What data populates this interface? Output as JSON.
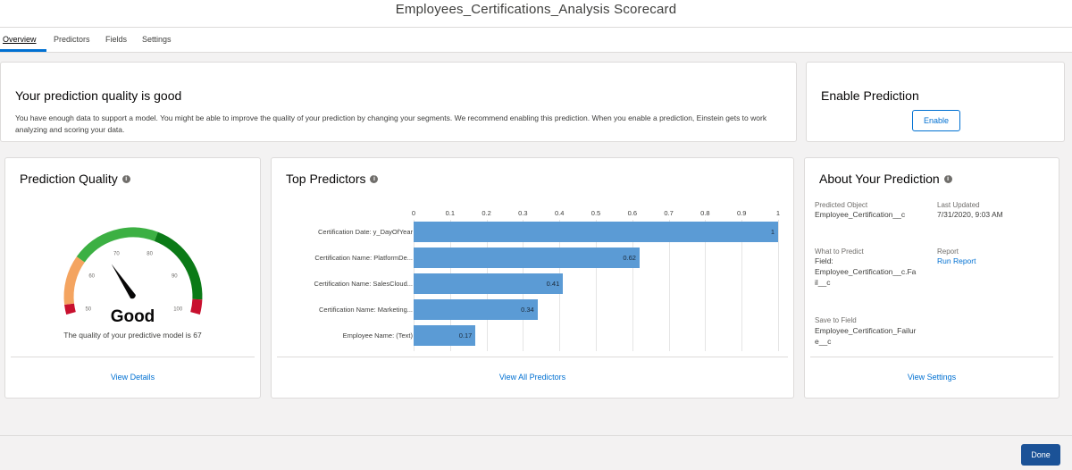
{
  "window": {
    "title": "Employees_Certifications_Analysis Scorecard"
  },
  "tabs": [
    {
      "label": "Overview",
      "active": true
    },
    {
      "label": "Predictors",
      "active": false
    },
    {
      "label": "Fields",
      "active": false
    },
    {
      "label": "Settings",
      "active": false
    }
  ],
  "quality_banner": {
    "title": "Your prediction quality is good",
    "text": "You have enough data to support a model. You might be able to improve the quality of your prediction by changing your segments. We recommend enabling this prediction. When you enable a prediction, Einstein gets to work analyzing and scoring your data."
  },
  "enable_card": {
    "title": "Enable Prediction",
    "button_label": "Enable"
  },
  "prediction_quality": {
    "title": "Prediction Quality",
    "info_icon": "info-icon",
    "gauge": {
      "value": 67,
      "min": 50,
      "max": 100,
      "tick_labels": [
        "50",
        "60",
        "70",
        "80",
        "90",
        "100"
      ],
      "colors": {
        "red": "#c8102e",
        "orange": "#f4a460",
        "light_green": "#3cb043",
        "dark_green": "#0b7a17",
        "needle": "#080707"
      }
    },
    "rating": "Good",
    "description": "The quality of your predictive model is 67",
    "footer_link": "View Details"
  },
  "top_predictors": {
    "title": "Top Predictors",
    "footer_link": "View All Predictors"
  },
  "chart_data": {
    "type": "bar",
    "orientation": "horizontal",
    "categories": [
      "Certification Date: y_DayOfYear",
      "Certification Name: PlatformDe...",
      "Certification Name: SalesCloud...",
      "Certification Name: Marketing...",
      "Employee Name: (Text)"
    ],
    "values": [
      1,
      0.62,
      0.41,
      0.34,
      0.17
    ],
    "data_labels": [
      "1",
      "0.62",
      "0.41",
      "0.34",
      "0.17"
    ],
    "xlim": [
      0,
      1
    ],
    "x_ticks": [
      "0",
      "0.1",
      "0.2",
      "0.3",
      "0.4",
      "0.5",
      "0.6",
      "0.7",
      "0.8",
      "0.9",
      "1"
    ],
    "bar_color": "#5b9bd5",
    "grid": true
  },
  "about": {
    "title": "About Your Prediction",
    "predicted_object_label": "Predicted Object",
    "predicted_object_value": "Employee_Certification__c",
    "last_updated_label": "Last Updated",
    "last_updated_value": "7/31/2020, 9:03 AM",
    "what_to_predict_label": "What to Predict",
    "what_to_predict_field_label": "Field:",
    "what_to_predict_value_1": "Employee_Certification__c.Fa",
    "what_to_predict_value_2": "il__c",
    "report_label": "Report",
    "report_link": "Run Report",
    "save_to_field_label": "Save to Field",
    "save_to_field_value_1": "Employee_Certification_Failur",
    "save_to_field_value_2": "e__c",
    "footer_link": "View Settings"
  },
  "footer": {
    "done_label": "Done"
  }
}
